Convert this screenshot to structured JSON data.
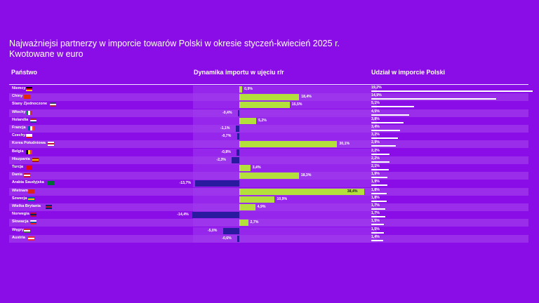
{
  "title_line1": "Najważniejsi partnerzy w imporcie towarów Polski w okresie styczeń-kwiecień 2025 r.",
  "title_line2": "Kwotowane w euro",
  "headers": {
    "country": "Państwo",
    "dynamics": "Dynamika importu w ujęciu r/r",
    "share": "Udział w imporcie Polski"
  },
  "chart_data": {
    "type": "table",
    "title": "Najważniejsi partnerzy w imporcie towarów Polski w okresie styczeń-kwiecień 2025 r.",
    "subtitle": "Kwotowane w euro",
    "columns": [
      "Państwo",
      "Dynamika importu w ujęciu r/r",
      "Udział w imporcie Polski"
    ],
    "rows": [
      {
        "country": "Niemcy",
        "dynamics": 0.9,
        "dynamics_label": "0,9%",
        "share": 19.2,
        "share_label": "19,2%",
        "flag": [
          "#000000",
          "#dd0000",
          "#ffce00"
        ]
      },
      {
        "country": "Chiny",
        "dynamics": 18.4,
        "dynamics_label": "18,4%",
        "share": 14.9,
        "share_label": "14,9%",
        "flag": [
          "#de2910",
          "#de2910",
          "#de2910"
        ]
      },
      {
        "country": "Stany Zjednoczone",
        "dynamics": 15.5,
        "dynamics_label": "15,5%",
        "share": 5.1,
        "share_label": "5,1%",
        "flag": [
          "#3c3b6e",
          "#ffffff",
          "#b22234"
        ]
      },
      {
        "country": "Włochy",
        "dynamics": -0.4,
        "dynamics_label": "-0,4%",
        "share": 4.5,
        "share_label": "4,5%",
        "flag": [
          "#009246",
          "#ffffff",
          "#ce2b37"
        ],
        "vertical": true
      },
      {
        "country": "Holandia",
        "dynamics": 5.2,
        "dynamics_label": "5,2%",
        "share": 3.8,
        "share_label": "3,8%",
        "flag": [
          "#ae1c28",
          "#ffffff",
          "#21468b"
        ]
      },
      {
        "country": "Francja",
        "dynamics": -1.1,
        "dynamics_label": "-1,1%",
        "share": 3.4,
        "share_label": "3,4%",
        "flag": [
          "#0055a4",
          "#ffffff",
          "#ef4135"
        ],
        "vertical": true
      },
      {
        "country": "Czechy",
        "dynamics": -0.7,
        "dynamics_label": "-0,7%",
        "share": 3.2,
        "share_label": "3,2%",
        "flag": [
          "#ffffff",
          "#ffffff",
          "#d7141a"
        ]
      },
      {
        "country": "Korea Południowa",
        "dynamics": 30.1,
        "dynamics_label": "30,1%",
        "share": 2.9,
        "share_label": "2,9%",
        "flag": [
          "#ffffff",
          "#c60c30",
          "#ffffff"
        ]
      },
      {
        "country": "Belgia",
        "dynamics": -0.8,
        "dynamics_label": "-0,8%",
        "share": 2.2,
        "share_label": "2,2%",
        "flag": [
          "#000000",
          "#fdda24",
          "#ef3340"
        ],
        "vertical": true
      },
      {
        "country": "Hiszpania",
        "dynamics": -2.3,
        "dynamics_label": "-2,3%",
        "share": 2.2,
        "share_label": "2,2%",
        "flag": [
          "#aa151b",
          "#f1bf00",
          "#aa151b"
        ]
      },
      {
        "country": "Turcja",
        "dynamics": 3.4,
        "dynamics_label": "3,4%",
        "share": 2.1,
        "share_label": "2,1%",
        "flag": [
          "#e30a17",
          "#e30a17",
          "#e30a17"
        ]
      },
      {
        "country": "Dania",
        "dynamics": 18.3,
        "dynamics_label": "18,3%",
        "share": 1.9,
        "share_label": "1,9%",
        "flag": [
          "#c8102e",
          "#ffffff",
          "#c8102e"
        ]
      },
      {
        "country": "Arabia Saudyjska",
        "dynamics": -13.7,
        "dynamics_label": "-13,7%",
        "share": 1.9,
        "share_label": "1,9%",
        "flag": [
          "#006c35",
          "#006c35",
          "#006c35"
        ]
      },
      {
        "country": "Wietnam",
        "dynamics": 38.4,
        "dynamics_label": "38,4%",
        "share": 1.8,
        "share_label": "1,8%",
        "flag": [
          "#da251d",
          "#da251d",
          "#da251d"
        ]
      },
      {
        "country": "Szwecja",
        "dynamics": 10.9,
        "dynamics_label": "10,9%",
        "share": 1.8,
        "share_label": "1,8%",
        "flag": [
          "#006aa7",
          "#fecc00",
          "#006aa7"
        ]
      },
      {
        "country": "Wielka Brytania",
        "dynamics": 4.9,
        "dynamics_label": "4,9%",
        "share": 1.7,
        "share_label": "1,7%",
        "flag": [
          "#012169",
          "#c8102e",
          "#012169"
        ]
      },
      {
        "country": "Norwegia",
        "dynamics": -14.4,
        "dynamics_label": "-14,4%",
        "share": 1.7,
        "share_label": "1,7%",
        "flag": [
          "#ba0c2f",
          "#00205b",
          "#ba0c2f"
        ]
      },
      {
        "country": "Słowacja",
        "dynamics": 2.7,
        "dynamics_label": "2,7%",
        "share": 1.5,
        "share_label": "1,5%",
        "flag": [
          "#ffffff",
          "#0b4ea2",
          "#ee1c25"
        ]
      },
      {
        "country": "Węgry",
        "dynamics": -5.0,
        "dynamics_label": "-5,0%",
        "share": 1.5,
        "share_label": "1,5%",
        "flag": [
          "#ce2939",
          "#ffffff",
          "#477050"
        ]
      },
      {
        "country": "Austria",
        "dynamics": -0.6,
        "dynamics_label": "-0,6%",
        "share": 1.4,
        "share_label": "1,4%",
        "flag": [
          "#ed2939",
          "#ffffff",
          "#ed2939"
        ]
      }
    ],
    "dynamics_range": [
      -15,
      40
    ],
    "share_range": [
      0,
      19.2
    ]
  }
}
